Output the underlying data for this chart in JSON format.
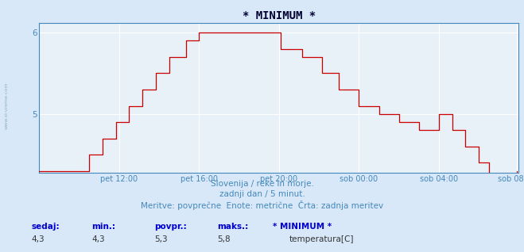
{
  "title": "* MINIMUM *",
  "bg_color": "#d8e8f8",
  "plot_bg_color": "#e8f0f8",
  "grid_color": "#ffffff",
  "line_color": "#cc0000",
  "axis_label_color": "#4488bb",
  "title_color": "#000033",
  "xlabel_labels": [
    "pet 12:00",
    "pet 16:00",
    "pet 20:00",
    "sob 00:00",
    "sob 04:00",
    "sob 08:00"
  ],
  "caption_line1": "Slovenija / reke in morje.",
  "caption_line2": "zadnji dan / 5 minut.",
  "caption_line3": "Meritve: povprečne  Enote: metrične  Črta: zadnja meritev",
  "legend_labels": [
    "sedaj:",
    "min.:",
    "povpr.:",
    "maks.:",
    "* MINIMUM *"
  ],
  "legend_values": [
    "4,3",
    "4,3",
    "5,3",
    "5,8",
    "temperatura[C]"
  ],
  "legend_color": "#cc0000",
  "ylim_low": 4.3,
  "ylim_high": 6.0,
  "ytick_vals": [
    5,
    6
  ],
  "n_points": 288,
  "watermark_color": "#8aaabb"
}
